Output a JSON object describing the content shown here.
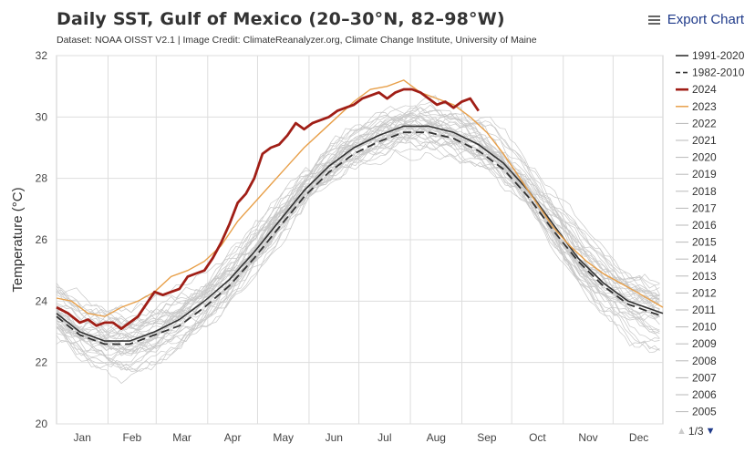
{
  "header": {
    "title": "Daily SST, Gulf of Mexico (20–30°N, 82–98°W)",
    "subtitle": "Dataset: NOAA OISST V2.1 | Image Credit: ClimateReanalyzer.org, Climate Change Institute, University of Maine",
    "export_label": "Export Chart",
    "export_icon": "menu-icon"
  },
  "legend_pager": {
    "page": "1/3",
    "up_icon": "triangle-up-icon",
    "down_icon": "triangle-down-icon"
  },
  "colors": {
    "y2024": "#a01e16",
    "y2023": "#e8a04a",
    "background_years": "#c8c8c8",
    "climatology": "#333333",
    "grid": "#dddddd"
  },
  "chart_data": {
    "type": "line",
    "title": "Daily SST, Gulf of Mexico (20–30°N, 82–98°W)",
    "ylabel": "Temperature (°C)",
    "xlabel": "",
    "ylim": [
      20,
      32
    ],
    "yticks": [
      20,
      22,
      24,
      26,
      28,
      30,
      32
    ],
    "xlim": [
      1,
      366
    ],
    "month_labels": [
      "Jan",
      "Feb",
      "Mar",
      "Apr",
      "May",
      "Jun",
      "Jul",
      "Aug",
      "Sep",
      "Oct",
      "Nov",
      "Dec"
    ],
    "grid": true,
    "legend_position": "right",
    "legend": [
      "1991-2020",
      "1982-2010",
      "2024",
      "2023",
      "2022",
      "2021",
      "2020",
      "2019",
      "2018",
      "2017",
      "2016",
      "2015",
      "2014",
      "2013",
      "2012",
      "2011",
      "2010",
      "2009",
      "2008",
      "2007",
      "2006",
      "2005"
    ],
    "series": [
      {
        "name": "1991-2020",
        "style": "solid-dark",
        "x": [
          1,
          15,
          30,
          45,
          60,
          75,
          90,
          105,
          120,
          135,
          150,
          165,
          180,
          195,
          210,
          225,
          240,
          255,
          270,
          285,
          300,
          315,
          330,
          345,
          366
        ],
        "y": [
          23.6,
          23.0,
          22.7,
          22.7,
          23.0,
          23.4,
          24.0,
          24.7,
          25.6,
          26.6,
          27.6,
          28.4,
          29.0,
          29.4,
          29.7,
          29.7,
          29.5,
          29.1,
          28.5,
          27.6,
          26.5,
          25.4,
          24.6,
          24.0,
          23.6
        ]
      },
      {
        "name": "1982-2010",
        "style": "dashed-dark",
        "x": [
          1,
          15,
          30,
          45,
          60,
          75,
          90,
          105,
          120,
          135,
          150,
          165,
          180,
          195,
          210,
          225,
          240,
          255,
          270,
          285,
          300,
          315,
          330,
          345,
          366
        ],
        "y": [
          23.5,
          22.9,
          22.6,
          22.6,
          22.9,
          23.2,
          23.8,
          24.5,
          25.4,
          26.4,
          27.4,
          28.2,
          28.8,
          29.2,
          29.5,
          29.5,
          29.3,
          28.9,
          28.3,
          27.4,
          26.3,
          25.3,
          24.5,
          23.9,
          23.5
        ]
      },
      {
        "name": "2024",
        "style": "bold-red",
        "x": [
          1,
          8,
          15,
          20,
          25,
          30,
          35,
          40,
          45,
          50,
          55,
          60,
          65,
          70,
          75,
          80,
          85,
          90,
          95,
          100,
          105,
          110,
          115,
          120,
          125,
          130,
          135,
          140,
          145,
          150,
          155,
          160,
          165,
          170,
          175,
          180,
          185,
          190,
          195,
          200,
          205,
          210,
          215,
          220,
          225,
          230,
          235,
          240,
          245,
          250,
          255
        ],
        "y": [
          23.8,
          23.6,
          23.3,
          23.4,
          23.2,
          23.3,
          23.3,
          23.1,
          23.3,
          23.5,
          23.9,
          24.3,
          24.2,
          24.3,
          24.4,
          24.8,
          24.9,
          25.0,
          25.4,
          25.9,
          26.5,
          27.2,
          27.5,
          28.0,
          28.8,
          29.0,
          29.1,
          29.4,
          29.8,
          29.6,
          29.8,
          29.9,
          30.0,
          30.2,
          30.3,
          30.4,
          30.6,
          30.7,
          30.8,
          30.6,
          30.8,
          30.9,
          30.9,
          30.8,
          30.6,
          30.4,
          30.5,
          30.3,
          30.5,
          30.6,
          30.2
        ]
      },
      {
        "name": "2023",
        "style": "thin-orange",
        "x": [
          1,
          10,
          20,
          30,
          40,
          50,
          60,
          70,
          80,
          90,
          100,
          110,
          120,
          130,
          140,
          150,
          160,
          170,
          180,
          190,
          200,
          210,
          215,
          220,
          230,
          240,
          250,
          260,
          270,
          280,
          290,
          300,
          310,
          320,
          330,
          340,
          350,
          366
        ],
        "y": [
          24.1,
          24.0,
          23.6,
          23.5,
          23.8,
          24.0,
          24.3,
          24.8,
          25.0,
          25.3,
          25.8,
          26.6,
          27.2,
          27.8,
          28.4,
          29.0,
          29.5,
          30.0,
          30.5,
          30.9,
          31.0,
          31.2,
          31.0,
          30.8,
          30.6,
          30.4,
          30.0,
          29.5,
          28.8,
          28.0,
          27.2,
          26.4,
          25.8,
          25.3,
          24.9,
          24.6,
          24.3,
          23.8
        ]
      },
      {
        "name": "2022"
      },
      {
        "name": "2021"
      },
      {
        "name": "2020"
      },
      {
        "name": "2019"
      },
      {
        "name": "2018"
      },
      {
        "name": "2017"
      },
      {
        "name": "2016"
      },
      {
        "name": "2015"
      },
      {
        "name": "2014"
      },
      {
        "name": "2013"
      },
      {
        "name": "2012"
      },
      {
        "name": "2011"
      },
      {
        "name": "2010"
      },
      {
        "name": "2009"
      },
      {
        "name": "2008"
      },
      {
        "name": "2007"
      },
      {
        "name": "2006"
      },
      {
        "name": "2005"
      }
    ]
  }
}
